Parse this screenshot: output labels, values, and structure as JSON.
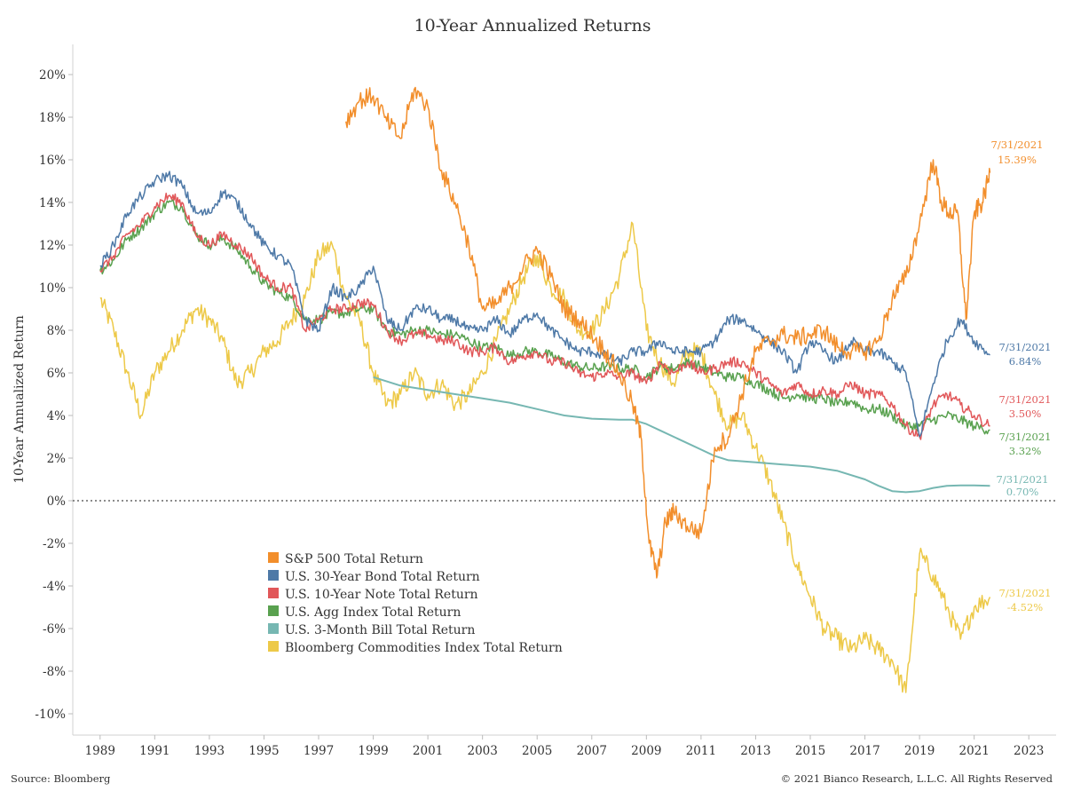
{
  "title": "10-Year Annualized Returns",
  "source": "Source: Bloomberg",
  "copyright": "© 2021 Bianco Research, L.L.C. All Rights Reserved",
  "chart_data": {
    "type": "line",
    "title": "10-Year Annualized Returns",
    "ylabel": "10-Year Annualized Return",
    "xlabel": "",
    "x_unit": "year",
    "xlim": [
      1988,
      2024
    ],
    "ylim": [
      -11,
      21
    ],
    "x_ticks": [
      "1989",
      "1991",
      "1993",
      "1995",
      "1997",
      "1999",
      "2001",
      "2003",
      "2005",
      "2007",
      "2009",
      "2011",
      "2013",
      "2015",
      "2017",
      "2019",
      "2021",
      "2023"
    ],
    "y_ticks": [
      "20%",
      "18%",
      "16%",
      "14%",
      "12%",
      "10%",
      "8%",
      "6%",
      "4%",
      "2%",
      "0%",
      "-2%",
      "-4%",
      "-6%",
      "-8%",
      "-10%"
    ],
    "zero_line": "dotted",
    "legend_position": "lower-left",
    "series": [
      {
        "name": "S&P 500 Total Return",
        "color": "#F28E2B",
        "x": [
          1998.0,
          1998.5,
          1999.0,
          1999.5,
          2000.0,
          2000.5,
          2001.0,
          2001.5,
          2002.0,
          2002.5,
          2003.0,
          2003.5,
          2004.0,
          2004.5,
          2005.0,
          2005.5,
          2006.0,
          2006.5,
          2007.0,
          2007.5,
          2008.0,
          2008.5,
          2008.8,
          2009.1,
          2009.4,
          2009.7,
          2010.0,
          2010.5,
          2011.0,
          2011.5,
          2012.0,
          2012.5,
          2013.0,
          2013.5,
          2014.0,
          2014.5,
          2015.0,
          2015.5,
          2016.0,
          2016.5,
          2017.0,
          2017.5,
          2018.0,
          2018.5,
          2019.0,
          2019.5,
          2019.8,
          2020.1,
          2020.4,
          2020.7,
          2021.0,
          2021.3,
          2021.58
        ],
        "y": [
          17.8,
          18.8,
          19.0,
          17.8,
          17.0,
          19.3,
          18.5,
          15.5,
          14.0,
          12.0,
          9.0,
          9.2,
          10.0,
          11.0,
          11.8,
          10.5,
          9.0,
          8.5,
          7.8,
          7.0,
          6.0,
          4.5,
          3.0,
          -2.0,
          -3.5,
          -1.0,
          -0.5,
          -1.2,
          -1.5,
          2.5,
          3.0,
          5.0,
          7.0,
          7.5,
          7.8,
          7.6,
          7.8,
          8.0,
          7.2,
          7.0,
          7.0,
          7.5,
          9.5,
          10.5,
          13.0,
          16.0,
          14.0,
          13.5,
          13.5,
          8.5,
          13.5,
          14.0,
          15.39
        ]
      },
      {
        "name": "U.S. 30-Year Bond Total Return",
        "color": "#4E79A7",
        "x": [
          1989.0,
          1989.5,
          1990.0,
          1990.5,
          1991.0,
          1991.5,
          1992.0,
          1992.5,
          1993.0,
          1993.5,
          1994.0,
          1994.5,
          1995.0,
          1995.5,
          1996.0,
          1996.5,
          1997.0,
          1997.5,
          1998.0,
          1998.5,
          1999.0,
          1999.5,
          2000.0,
          2000.5,
          2001.0,
          2001.5,
          2002.0,
          2002.5,
          2003.0,
          2003.5,
          2004.0,
          2004.5,
          2005.0,
          2005.5,
          2006.0,
          2006.5,
          2007.0,
          2007.5,
          2008.0,
          2008.5,
          2009.0,
          2009.5,
          2010.0,
          2010.5,
          2011.0,
          2011.5,
          2012.0,
          2012.5,
          2013.0,
          2013.5,
          2014.0,
          2014.5,
          2015.0,
          2015.5,
          2016.0,
          2016.5,
          2017.0,
          2017.5,
          2018.0,
          2018.5,
          2019.0,
          2019.5,
          2020.0,
          2020.5,
          2021.0,
          2021.58
        ],
        "y": [
          11.0,
          12.0,
          13.5,
          14.3,
          15.0,
          15.3,
          14.8,
          13.5,
          13.5,
          14.5,
          14.0,
          13.0,
          12.0,
          11.5,
          11.0,
          8.5,
          8.0,
          10.0,
          9.5,
          10.0,
          11.0,
          8.5,
          8.0,
          9.0,
          9.0,
          8.5,
          8.5,
          8.0,
          8.0,
          8.5,
          7.8,
          8.5,
          8.8,
          8.0,
          7.5,
          7.0,
          7.0,
          6.8,
          6.5,
          7.0,
          7.0,
          7.5,
          7.0,
          7.0,
          7.0,
          7.5,
          8.5,
          8.5,
          8.0,
          7.5,
          7.0,
          6.0,
          7.5,
          7.0,
          6.5,
          7.5,
          7.0,
          7.0,
          6.5,
          6.0,
          3.0,
          5.5,
          7.5,
          8.5,
          7.5,
          6.84
        ]
      },
      {
        "name": "U.S. 10-Year Note Total Return",
        "color": "#E15759",
        "x": [
          1989.0,
          1989.5,
          1990.0,
          1990.5,
          1991.0,
          1991.5,
          1992.0,
          1992.5,
          1993.0,
          1993.5,
          1994.0,
          1994.5,
          1995.0,
          1995.5,
          1996.0,
          1996.5,
          1997.0,
          1997.5,
          1998.0,
          1998.5,
          1999.0,
          1999.5,
          2000.0,
          2000.5,
          2001.0,
          2001.5,
          2002.0,
          2002.5,
          2003.0,
          2003.5,
          2004.0,
          2004.5,
          2005.0,
          2005.5,
          2006.0,
          2006.5,
          2007.0,
          2007.5,
          2008.0,
          2008.5,
          2009.0,
          2009.5,
          2010.0,
          2010.5,
          2011.0,
          2011.5,
          2012.0,
          2012.5,
          2013.0,
          2013.5,
          2014.0,
          2014.5,
          2015.0,
          2015.5,
          2016.0,
          2016.5,
          2017.0,
          2017.5,
          2018.0,
          2018.5,
          2019.0,
          2019.5,
          2020.0,
          2020.5,
          2021.0,
          2021.58
        ],
        "y": [
          10.8,
          11.5,
          12.5,
          13.0,
          13.8,
          14.3,
          14.0,
          12.5,
          12.0,
          12.5,
          12.0,
          11.5,
          10.5,
          10.0,
          10.0,
          8.0,
          8.5,
          9.0,
          9.0,
          9.3,
          9.2,
          8.0,
          7.5,
          7.8,
          7.8,
          7.5,
          7.5,
          7.0,
          7.0,
          7.2,
          6.5,
          6.8,
          7.0,
          6.5,
          6.5,
          6.0,
          5.8,
          6.0,
          5.8,
          6.0,
          5.5,
          6.5,
          6.0,
          6.5,
          6.0,
          6.2,
          6.5,
          6.5,
          6.0,
          5.5,
          5.0,
          5.5,
          5.0,
          5.2,
          5.0,
          5.5,
          5.0,
          5.0,
          4.5,
          3.5,
          3.0,
          4.5,
          5.0,
          4.5,
          4.0,
          3.5
        ]
      },
      {
        "name": "U.S. Agg Index Total Return",
        "color": "#59A14F",
        "x": [
          1989.0,
          1989.5,
          1990.0,
          1990.5,
          1991.0,
          1991.5,
          1992.0,
          1992.5,
          1993.0,
          1993.5,
          1994.0,
          1994.5,
          1995.0,
          1995.5,
          1996.0,
          1996.5,
          1997.0,
          1997.5,
          1998.0,
          1998.5,
          1999.0,
          1999.5,
          2000.0,
          2000.5,
          2001.0,
          2001.5,
          2002.0,
          2002.5,
          2003.0,
          2003.5,
          2004.0,
          2004.5,
          2005.0,
          2005.5,
          2006.0,
          2006.5,
          2007.0,
          2007.5,
          2008.0,
          2008.5,
          2009.0,
          2009.5,
          2010.0,
          2010.5,
          2011.0,
          2011.5,
          2012.0,
          2012.5,
          2013.0,
          2013.5,
          2014.0,
          2014.5,
          2015.0,
          2015.5,
          2016.0,
          2016.5,
          2017.0,
          2017.5,
          2018.0,
          2018.5,
          2019.0,
          2019.5,
          2020.0,
          2020.5,
          2021.0,
          2021.58
        ],
        "y": [
          10.8,
          11.3,
          12.3,
          12.8,
          13.5,
          14.0,
          13.8,
          12.5,
          12.0,
          12.3,
          11.8,
          11.0,
          10.2,
          9.8,
          9.5,
          8.5,
          8.5,
          8.8,
          8.8,
          9.0,
          9.0,
          8.0,
          7.8,
          8.0,
          8.0,
          7.8,
          7.8,
          7.5,
          7.2,
          7.2,
          6.8,
          7.0,
          7.0,
          6.8,
          6.5,
          6.3,
          6.2,
          6.3,
          6.2,
          6.2,
          5.8,
          6.3,
          6.2,
          6.5,
          6.3,
          6.0,
          5.8,
          5.8,
          5.5,
          5.2,
          4.8,
          5.0,
          4.8,
          4.8,
          4.5,
          4.7,
          4.3,
          4.3,
          4.0,
          3.5,
          3.5,
          3.8,
          4.0,
          3.8,
          3.5,
          3.32
        ]
      },
      {
        "name": "U.S. 3-Month Bill Total Return",
        "color": "#76B7B2",
        "x": [
          1999.0,
          2000.0,
          2001.0,
          2002.0,
          2003.0,
          2004.0,
          2005.0,
          2006.0,
          2007.0,
          2008.0,
          2008.5,
          2009.0,
          2009.5,
          2010.0,
          2010.5,
          2011.0,
          2011.5,
          2012.0,
          2013.0,
          2014.0,
          2015.0,
          2016.0,
          2017.0,
          2017.5,
          2018.0,
          2018.5,
          2019.0,
          2019.5,
          2020.0,
          2020.5,
          2021.0,
          2021.58
        ],
        "y": [
          5.8,
          5.4,
          5.2,
          5.0,
          4.8,
          4.6,
          4.3,
          4.0,
          3.85,
          3.8,
          3.8,
          3.6,
          3.3,
          3.0,
          2.7,
          2.4,
          2.1,
          1.9,
          1.8,
          1.7,
          1.6,
          1.4,
          1.0,
          0.7,
          0.45,
          0.4,
          0.45,
          0.6,
          0.7,
          0.72,
          0.72,
          0.7
        ]
      },
      {
        "name": "Bloomberg Commodities Index Total Return",
        "color": "#EDC948",
        "x": [
          1989.0,
          1989.5,
          1990.0,
          1990.5,
          1991.0,
          1991.5,
          1992.0,
          1992.5,
          1993.0,
          1993.5,
          1994.0,
          1994.5,
          1995.0,
          1995.5,
          1996.0,
          1996.5,
          1997.0,
          1997.5,
          1998.0,
          1998.5,
          1999.0,
          1999.5,
          2000.0,
          2000.5,
          2001.0,
          2001.5,
          2002.0,
          2002.5,
          2003.0,
          2003.5,
          2004.0,
          2004.5,
          2005.0,
          2005.5,
          2006.0,
          2006.5,
          2007.0,
          2007.5,
          2008.0,
          2008.5,
          2009.0,
          2009.5,
          2010.0,
          2010.5,
          2011.0,
          2011.5,
          2012.0,
          2012.5,
          2013.0,
          2013.5,
          2014.0,
          2014.5,
          2015.0,
          2015.5,
          2016.0,
          2016.5,
          2017.0,
          2017.5,
          2018.0,
          2018.5,
          2019.0,
          2019.5,
          2020.0,
          2020.5,
          2021.0,
          2021.58
        ],
        "y": [
          9.5,
          8.0,
          6.0,
          4.0,
          6.0,
          7.0,
          8.0,
          9.0,
          8.5,
          7.5,
          5.5,
          6.0,
          7.0,
          7.5,
          8.5,
          9.5,
          11.5,
          12.0,
          9.5,
          8.5,
          6.0,
          4.5,
          5.0,
          6.0,
          5.0,
          5.5,
          4.5,
          5.0,
          6.0,
          7.5,
          9.0,
          10.5,
          11.5,
          10.0,
          9.5,
          8.0,
          8.0,
          9.0,
          10.5,
          13.0,
          8.0,
          6.5,
          5.5,
          7.0,
          7.0,
          5.0,
          3.5,
          4.0,
          2.5,
          1.0,
          -1.0,
          -3.0,
          -4.5,
          -6.0,
          -6.5,
          -7.0,
          -6.5,
          -7.0,
          -7.5,
          -9.0,
          -2.5,
          -3.5,
          -5.0,
          -6.5,
          -5.0,
          -4.52
        ]
      }
    ],
    "end_labels": [
      {
        "date": "7/31/2021",
        "value": "15.39%",
        "color": "#F28E2B"
      },
      {
        "date": "7/31/2021",
        "value": "6.84%",
        "color": "#4E79A7"
      },
      {
        "date": "7/31/2021",
        "value": "3.50%",
        "color": "#E15759"
      },
      {
        "date": "7/31/2021",
        "value": "3.32%",
        "color": "#59A14F"
      },
      {
        "date": "7/31/2021",
        "value": "0.70%",
        "color": "#76B7B2"
      },
      {
        "date": "7/31/2021",
        "value": "-4.52%",
        "color": "#EDC948"
      }
    ]
  }
}
